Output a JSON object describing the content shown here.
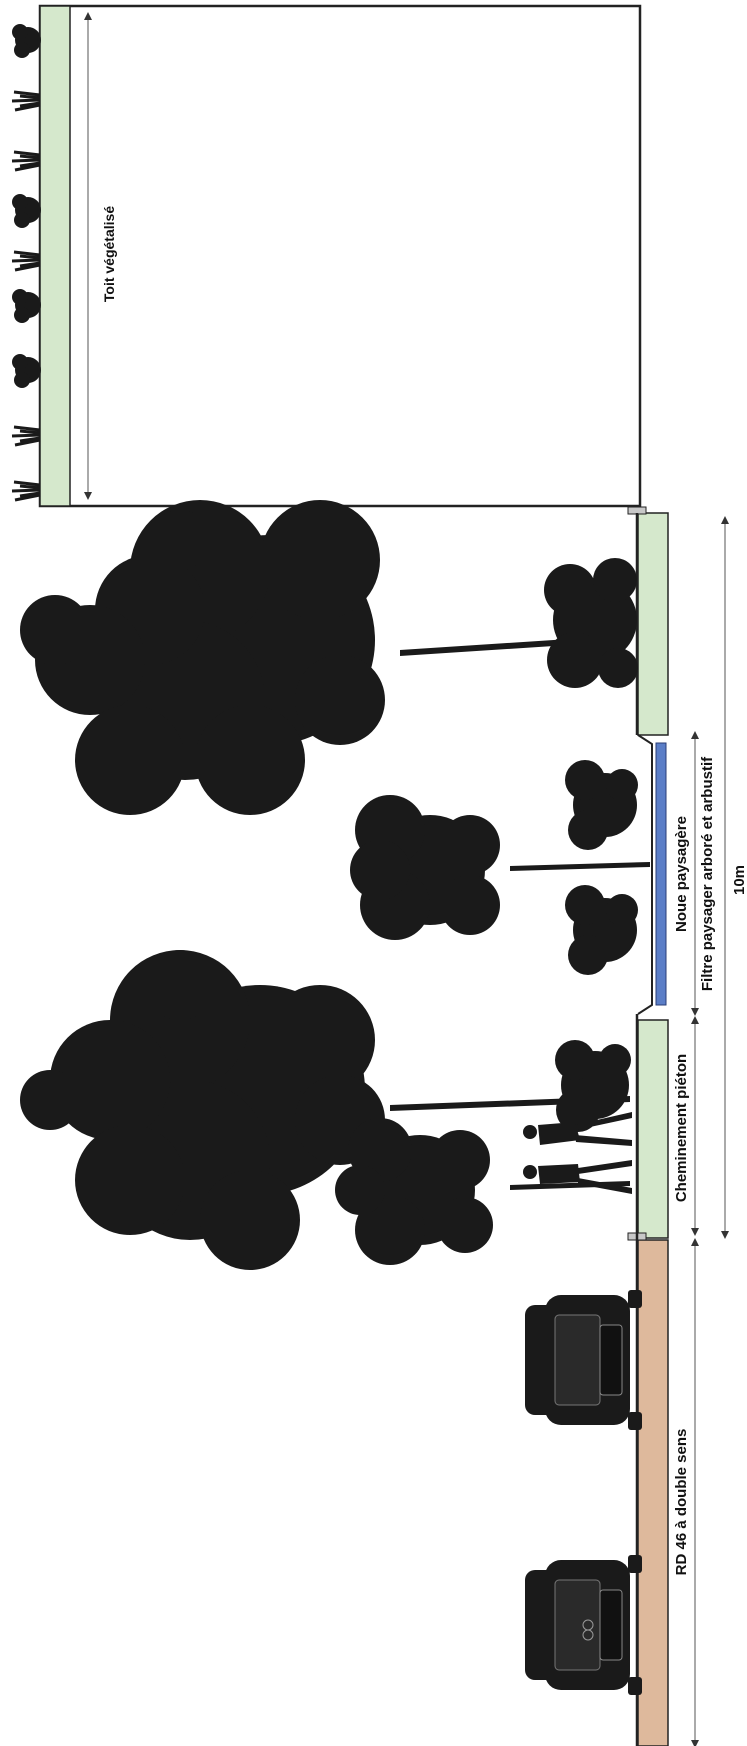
{
  "labels": {
    "roof": "Toit végétalisé",
    "road": "RD 46 à double sens",
    "walkway": "Cheminement piéton",
    "swale": "Noue paysagère",
    "filter": "Filtre paysager arboré et arbustif",
    "dimension": "10m"
  },
  "colors": {
    "green_strip": "#d5e8cc",
    "road": "#deb99c",
    "swale_water": "#5b7ec7",
    "silhouette": "#1a1a1a",
    "outline": "#222222"
  }
}
